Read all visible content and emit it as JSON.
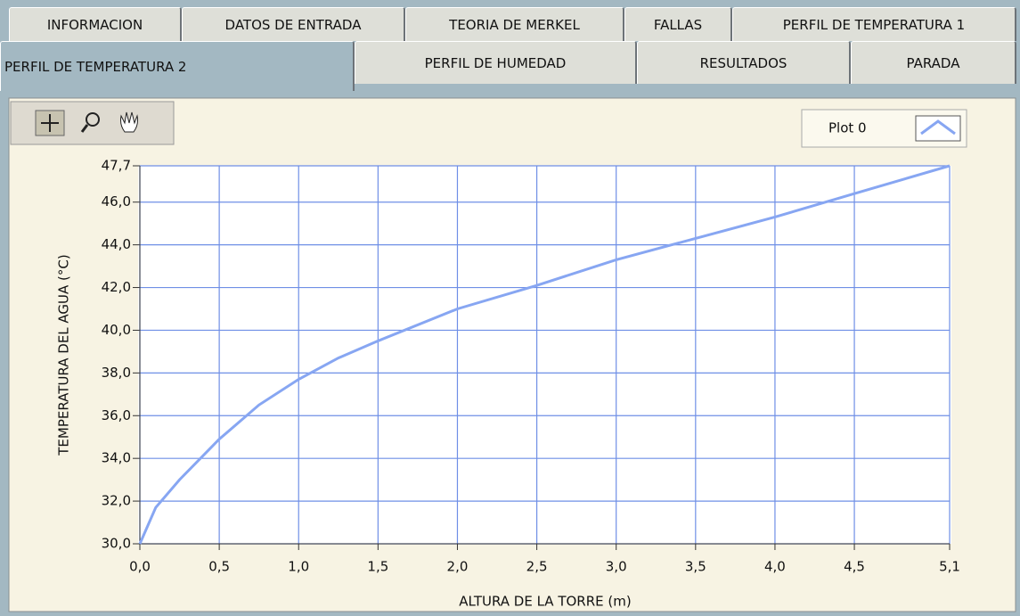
{
  "tabs": {
    "row1": [
      "INFORMACION",
      "DATOS DE ENTRADA",
      "TEORIA DE MERKEL",
      "FALLAS",
      "PERFIL DE TEMPERATURA 1"
    ],
    "row2": [
      "PERFIL DE TEMPERATURA 2",
      "PERFIL DE HUMEDAD",
      "RESULTADOS",
      "PARADA"
    ]
  },
  "chart_data": {
    "type": "line",
    "xlabel": "ALTURA DE LA TORRE (m)",
    "ylabel": "TEMPERATURA DEL AGUA (°C)",
    "x": [
      0,
      0.1,
      0.25,
      0.5,
      0.75,
      1.0,
      1.25,
      1.5,
      2.0,
      2.5,
      3.0,
      3.5,
      4.0,
      4.5,
      5.1
    ],
    "series": [
      {
        "name": "Plot 0",
        "color": "#87a6f2",
        "values": [
          30.0,
          31.7,
          33.0,
          34.9,
          36.5,
          37.7,
          38.7,
          39.5,
          41.0,
          42.1,
          43.3,
          44.3,
          45.3,
          46.4,
          47.7
        ]
      }
    ],
    "xlim": [
      0,
      5.1
    ],
    "ylim": [
      30,
      47.7
    ],
    "xticks": [
      {
        "value": 0,
        "label": "0,0"
      },
      {
        "value": 0.5,
        "label": "0,5"
      },
      {
        "value": 1.0,
        "label": "1,0"
      },
      {
        "value": 1.5,
        "label": "1,5"
      },
      {
        "value": 2.0,
        "label": "2,0"
      },
      {
        "value": 2.5,
        "label": "2,5"
      },
      {
        "value": 3.0,
        "label": "3,0"
      },
      {
        "value": 3.5,
        "label": "3,5"
      },
      {
        "value": 4.0,
        "label": "4,0"
      },
      {
        "value": 4.5,
        "label": "4,5"
      },
      {
        "value": 5.1,
        "label": "5,1"
      }
    ],
    "yticks": [
      {
        "value": 30,
        "label": "30,0"
      },
      {
        "value": 32,
        "label": "32,0"
      },
      {
        "value": 34,
        "label": "34,0"
      },
      {
        "value": 36,
        "label": "36,0"
      },
      {
        "value": 38,
        "label": "38,0"
      },
      {
        "value": 40,
        "label": "40,0"
      },
      {
        "value": 42,
        "label": "42,0"
      },
      {
        "value": 44,
        "label": "44,0"
      },
      {
        "value": 46,
        "label": "46,0"
      },
      {
        "value": 47.7,
        "label": "47,7"
      }
    ],
    "grid": true,
    "grid_color": "#6f8fe6"
  }
}
